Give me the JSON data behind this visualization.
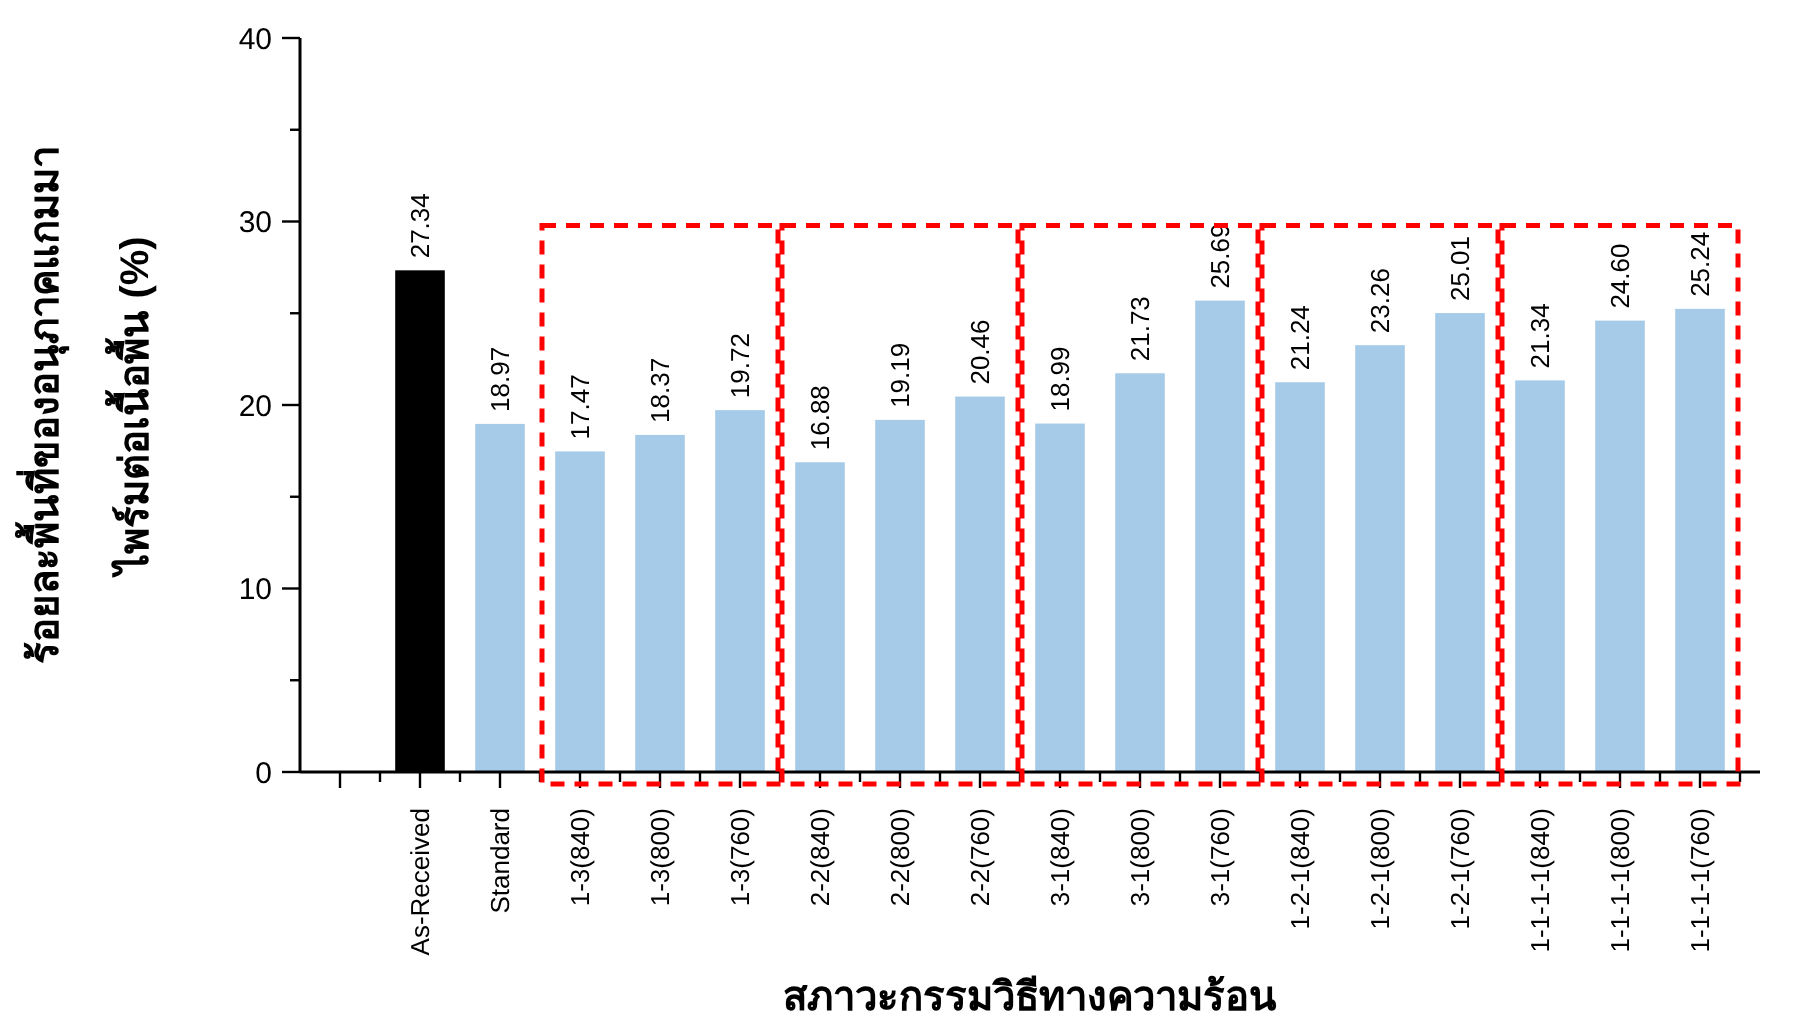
{
  "chart_data": {
    "type": "bar",
    "ylabel": "ร้อยละพื้นที่ของอนุภาคแกมมา\nไพร์มต่อเนื้อพื้น (%)",
    "xlabel": "สภาวะกรรมวิธีทางความร้อน",
    "categories": [
      null,
      "As-Received",
      "Standard",
      "1-3(840)",
      "1-3(800)",
      "1-3(760)",
      "2-2(840)",
      "2-2(800)",
      "2-2(760)",
      "3-1(840)",
      "3-1(800)",
      "3-1(760)",
      "1-2-1(840)",
      "1-2-1(800)",
      "1-2-1(760)",
      "1-1-1-1(840)",
      "1-1-1-1(800)",
      "1-1-1-1(760)"
    ],
    "values": [
      null,
      27.34,
      18.97,
      17.47,
      18.37,
      19.72,
      16.88,
      19.19,
      20.46,
      18.99,
      21.73,
      25.69,
      21.24,
      23.26,
      25.01,
      21.34,
      24.6,
      25.24
    ],
    "colors": [
      null,
      "#000000",
      "#a5cbe9",
      "#a5cbe9",
      "#a5cbe9",
      "#a5cbe9",
      "#a5cbe9",
      "#a5cbe9",
      "#a5cbe9",
      "#a5cbe9",
      "#a5cbe9",
      "#a5cbe9",
      "#a5cbe9",
      "#a5cbe9",
      "#a5cbe9",
      "#a5cbe9",
      "#a5cbe9",
      "#a5cbe9"
    ],
    "value_labels": [
      null,
      "27.34",
      "18.97",
      "17.47",
      "18.37",
      "19.72",
      "16.88",
      "19.19",
      "20.46",
      "18.99",
      "21.73",
      "25.69",
      "21.24",
      "23.26",
      "25.01",
      "21.34",
      "24.60",
      "25.24"
    ],
    "ylim": [
      0,
      40
    ],
    "yticks": [
      0,
      {
        "value": 5,
        "label": null
      },
      10,
      {
        "value": 15,
        "label": null
      },
      20,
      {
        "value": 25,
        "label": null
      },
      30,
      {
        "value": 35,
        "label": null
      },
      40
    ]
  }
}
